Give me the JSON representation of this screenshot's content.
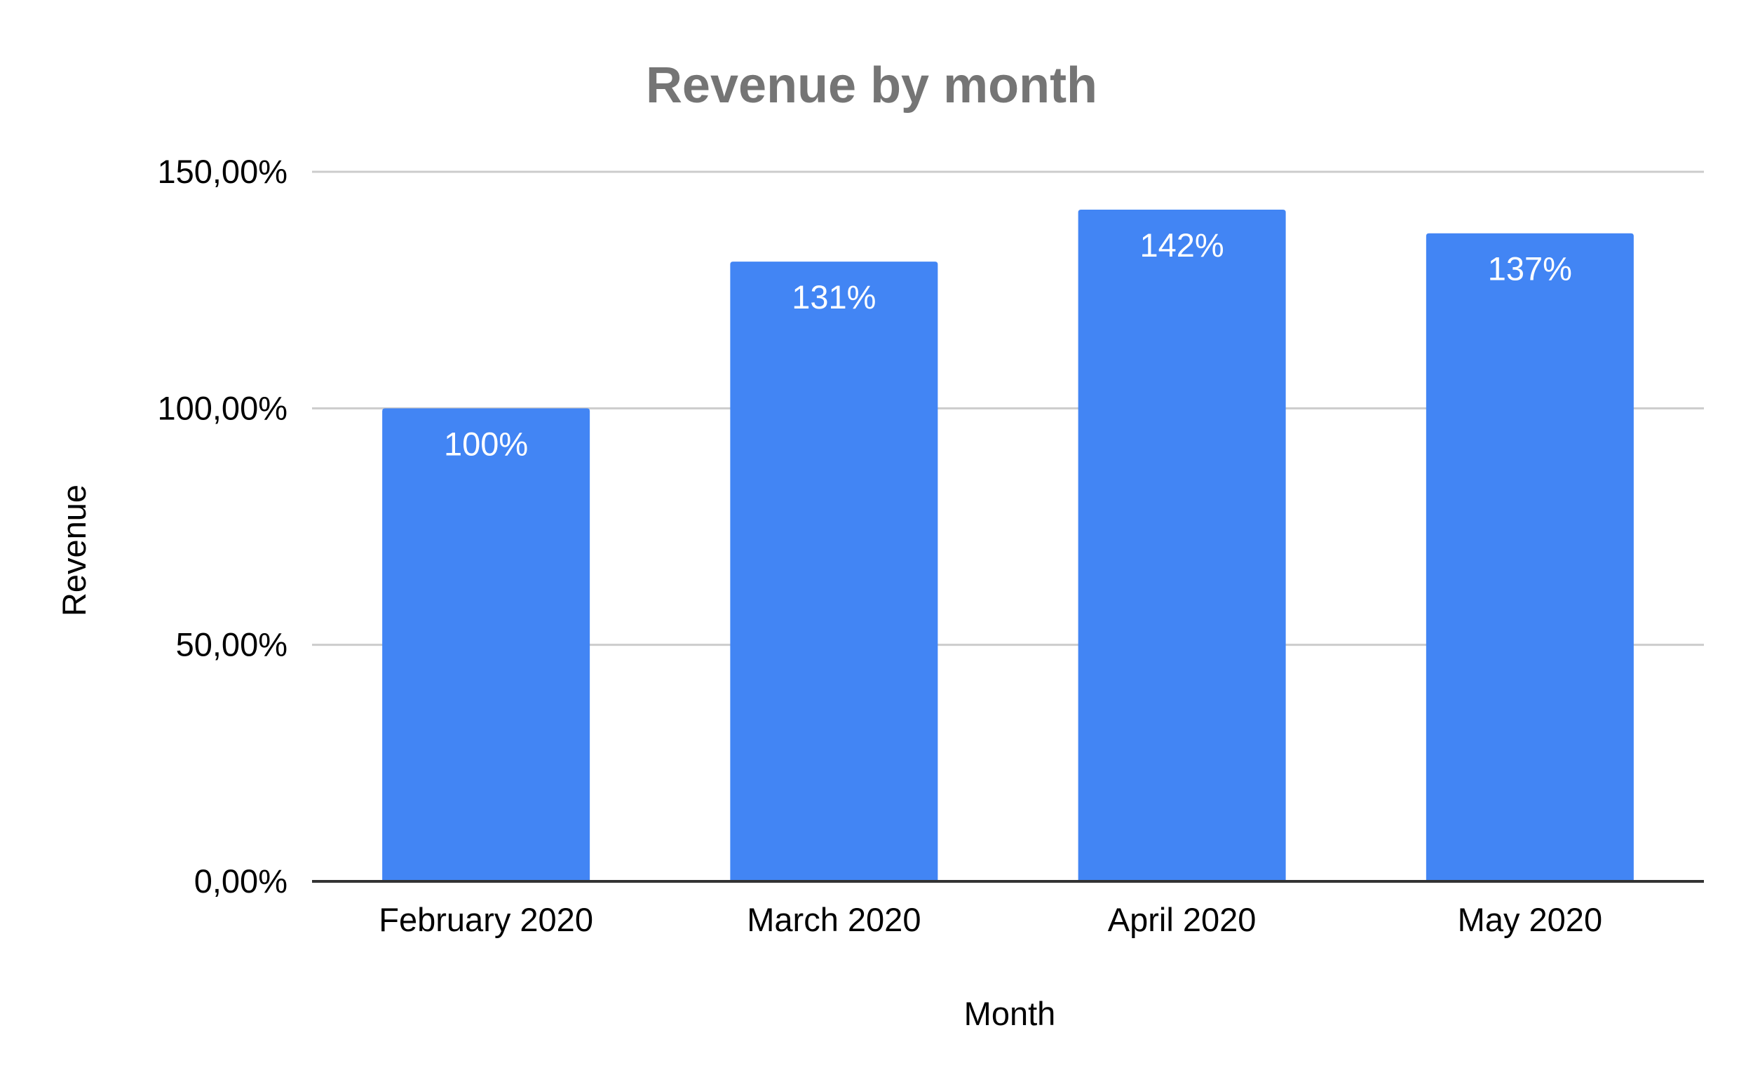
{
  "chart_data": {
    "type": "bar",
    "title": "Revenue by month",
    "xlabel": "Month",
    "ylabel": "Revenue",
    "categories": [
      "February 2020",
      "March 2020",
      "April 2020",
      "May 2020"
    ],
    "series": [
      {
        "values": [
          100,
          131,
          142,
          137
        ],
        "data_labels": [
          "100%",
          "131%",
          "142%",
          "137%"
        ],
        "color": "#4285f4"
      }
    ],
    "ylim": [
      0,
      150
    ],
    "yticks": [
      0,
      50,
      100,
      150
    ],
    "ytick_labels": [
      "0,00%",
      "50,00%",
      "100,00%",
      "150,00%"
    ],
    "grid": true,
    "legend": "none",
    "colors": {
      "bar": "#4285f4",
      "grid": "#cccccc",
      "axis": "#333333",
      "title": "#757575",
      "text": "#000000",
      "data_label": "#ffffff"
    }
  }
}
